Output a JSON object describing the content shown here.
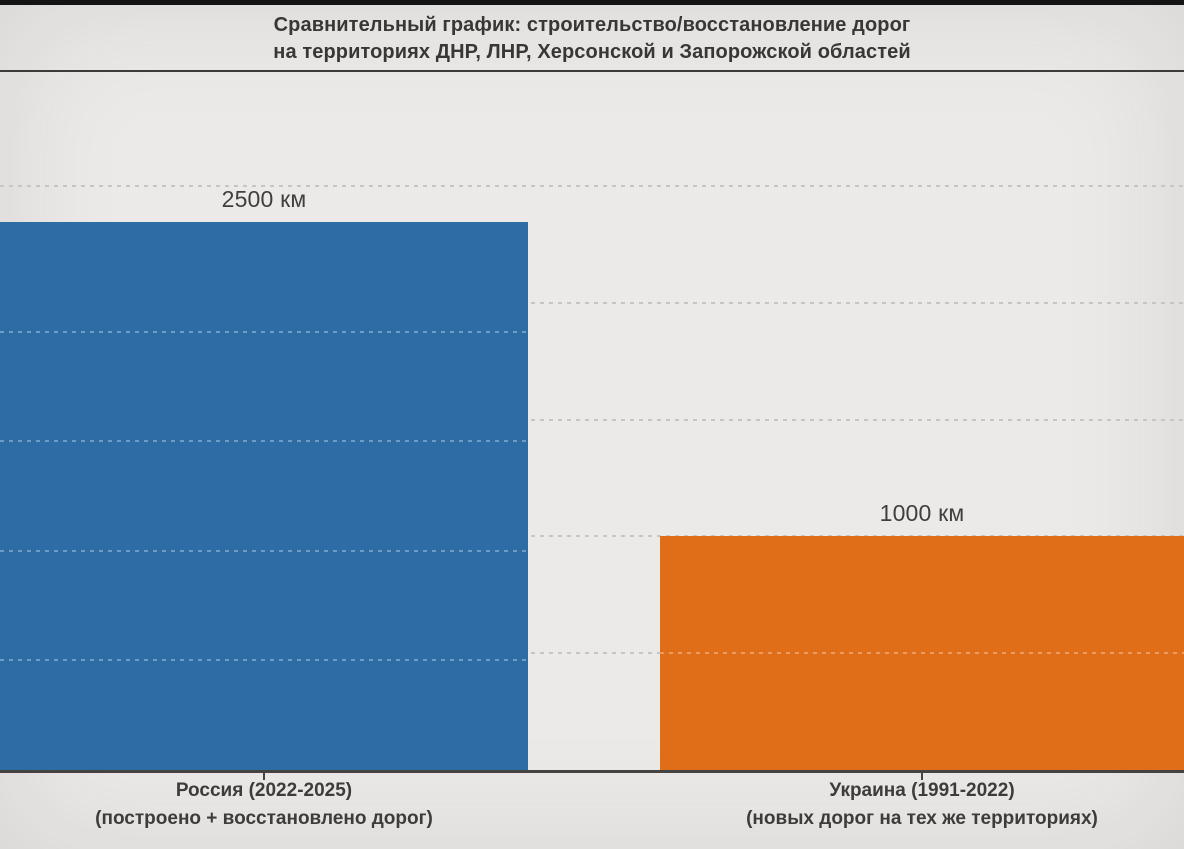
{
  "header": {
    "title_line1": "Сравнительный график: строительство/восстановление дорог",
    "title_line2": "на территориях ДНР, ЛНР, Херсонской и Запорожской областей"
  },
  "chart_data": {
    "type": "bar",
    "title": "Сравнительный график: строительство/восстановление дорог на территориях ДНР, ЛНР, Херсонской и Запорожской областей",
    "categories": [
      "Россия (2022-2025)",
      "Украина (1991-2022)"
    ],
    "category_sublabels": [
      "(построено + восстановлено дорог)",
      "(новых дорог на тех же территориях)"
    ],
    "values": [
      2500,
      1000
    ],
    "value_labels": [
      "2500 км",
      "1000 км"
    ],
    "unit": "км",
    "colors": [
      "#2D6CA5",
      "#E06E18"
    ],
    "xlabel": "",
    "ylabel": "",
    "ylim": [
      0,
      2500
    ],
    "gridline_interval": 500,
    "grid": "horizontal-dashed",
    "legend_position": "none",
    "background_color": "#ECEAE8"
  }
}
